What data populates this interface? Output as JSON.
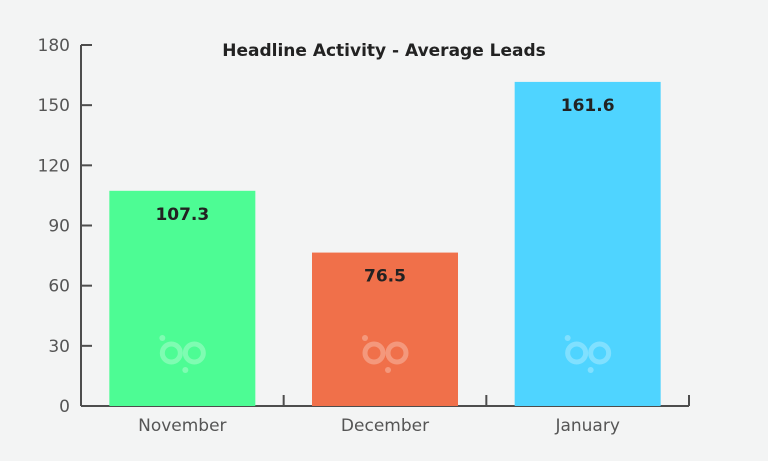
{
  "chart_data": {
    "type": "bar",
    "title": "Headline Activity - Average Leads",
    "xlabel": "",
    "ylabel": "",
    "categories": [
      "November",
      "December",
      "January"
    ],
    "values": [
      107.3,
      76.5,
      161.6
    ],
    "value_labels": [
      "107.3",
      "76.5",
      "161.6"
    ],
    "bar_colors": [
      "#4dfc94",
      "#f0704a",
      "#4fd4ff"
    ],
    "ylim": [
      0,
      180
    ],
    "yticks": [
      0,
      30,
      60,
      90,
      120,
      150,
      180
    ],
    "grid": false,
    "legend": "none",
    "watermark_icon": "bp-logo-icon"
  },
  "colors": {
    "background": "#f3f4f4",
    "axis": "#4d4d4d",
    "text": "#222222",
    "tick_text": "#555555"
  }
}
